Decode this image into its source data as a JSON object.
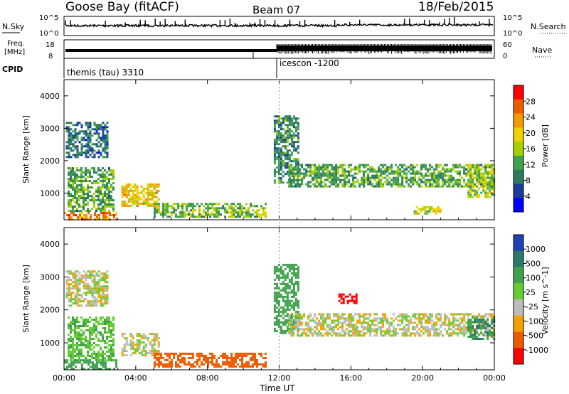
{
  "header": {
    "station": "Goose Bay (fitACF)",
    "beam": "Beam 07",
    "date": "18/Feb/2015"
  },
  "nsky_panel": {
    "left_label": "N.Sky",
    "right_label": "N.Search",
    "right_ticks": [
      "10^5",
      "10^0"
    ],
    "left_ticks": [
      "10^5",
      "10^0"
    ]
  },
  "freq_panel": {
    "label_lines": [
      "Freq.",
      "[MHz]"
    ],
    "ticks": [
      "18",
      "8"
    ],
    "nave_label": "Nave",
    "nave_ticks": [
      "60",
      "0"
    ]
  },
  "cpid": {
    "label": "CPID",
    "segments": [
      {
        "name": "themis (tau) 3310",
        "start_h": 0
      },
      {
        "name": "icescon -1200",
        "start_h": 12
      }
    ]
  },
  "axes": {
    "xlabel": "Time UT",
    "x_ticks": [
      "00:00",
      "04:00",
      "08:00",
      "12:00",
      "16:00",
      "20:00",
      "00:00"
    ],
    "ylabel": "Slant Range [km]",
    "y_ticks": [
      "4000",
      "3000",
      "2000",
      "1000"
    ]
  },
  "chart_data": [
    {
      "type": "heatmap",
      "title": "",
      "xlabel": "Time UT",
      "ylabel": "Slant Range [km]",
      "xlim": [
        0,
        24
      ],
      "ylim": [
        180,
        4500
      ],
      "colorbar_label": "Power [dB]",
      "colorbar_ticks": [
        "28",
        "24",
        "20",
        "16",
        "12",
        "8",
        "4"
      ],
      "colorbar_colors": [
        "#ff0000",
        "#ee5a00",
        "#f29a00",
        "#f2d000",
        "#a8d000",
        "#3fa24c",
        "#2c7c5a",
        "#1a3d9c",
        "#0000ff"
      ],
      "regions": [
        {
          "t": [
            0.0,
            2.9
          ],
          "r": [
            180,
            420
          ],
          "value_db": 24
        },
        {
          "t": [
            0.2,
            2.8
          ],
          "r": [
            420,
            1800
          ],
          "value_db": 12
        },
        {
          "t": [
            0.1,
            2.4
          ],
          "r": [
            2100,
            3200
          ],
          "value_db": 8
        },
        {
          "t": [
            3.2,
            5.3
          ],
          "r": [
            600,
            1300
          ],
          "value_db": 20
        },
        {
          "t": [
            5.0,
            11.2
          ],
          "r": [
            250,
            700
          ],
          "value_db": 14
        },
        {
          "t": [
            11.7,
            13.1
          ],
          "r": [
            1300,
            3400
          ],
          "value_db": 10
        },
        {
          "t": [
            12.5,
            24.0
          ],
          "r": [
            1200,
            1900
          ],
          "value_db": 12
        },
        {
          "t": [
            22.5,
            24.0
          ],
          "r": [
            900,
            1900
          ],
          "value_db": 16
        },
        {
          "t": [
            19.5,
            21.0
          ],
          "r": [
            350,
            600
          ],
          "value_db": 18
        }
      ]
    },
    {
      "type": "heatmap",
      "title": "",
      "xlabel": "Time UT",
      "ylabel": "Slant Range [km]",
      "xlim": [
        0,
        24
      ],
      "ylim": [
        180,
        4500
      ],
      "colorbar_label": "Velocity [m s^-1]",
      "colorbar_ticks": [
        "1000",
        "500",
        "100",
        "25",
        "-25",
        "-100",
        "-500",
        "-1000"
      ],
      "colorbar_colors": [
        "#2040b0",
        "#2a7a6a",
        "#3fa24c",
        "#66cc33",
        "#bbbbbb",
        "#f2a200",
        "#ee5a00",
        "#ff0000"
      ],
      "regions": [
        {
          "t": [
            0.0,
            2.9
          ],
          "r": [
            180,
            500
          ],
          "value_ms": 100
        },
        {
          "t": [
            0.2,
            2.8
          ],
          "r": [
            500,
            1800
          ],
          "value_ms": 50
        },
        {
          "t": [
            0.1,
            2.4
          ],
          "r": [
            2100,
            3200
          ],
          "value_ms": 0
        },
        {
          "t": [
            3.2,
            5.3
          ],
          "r": [
            600,
            1300
          ],
          "value_ms": 0
        },
        {
          "t": [
            5.0,
            11.2
          ],
          "r": [
            250,
            700
          ],
          "value_ms": -100
        },
        {
          "t": [
            11.7,
            13.1
          ],
          "r": [
            1300,
            3400
          ],
          "value_ms": 100
        },
        {
          "t": [
            12.5,
            24.0
          ],
          "r": [
            1200,
            1900
          ],
          "value_ms": 0
        },
        {
          "t": [
            22.5,
            24.0
          ],
          "r": [
            1100,
            1800
          ],
          "value_ms": 300
        },
        {
          "t": [
            15.3,
            16.3
          ],
          "r": [
            2200,
            2500
          ],
          "value_ms": -600
        }
      ]
    }
  ]
}
